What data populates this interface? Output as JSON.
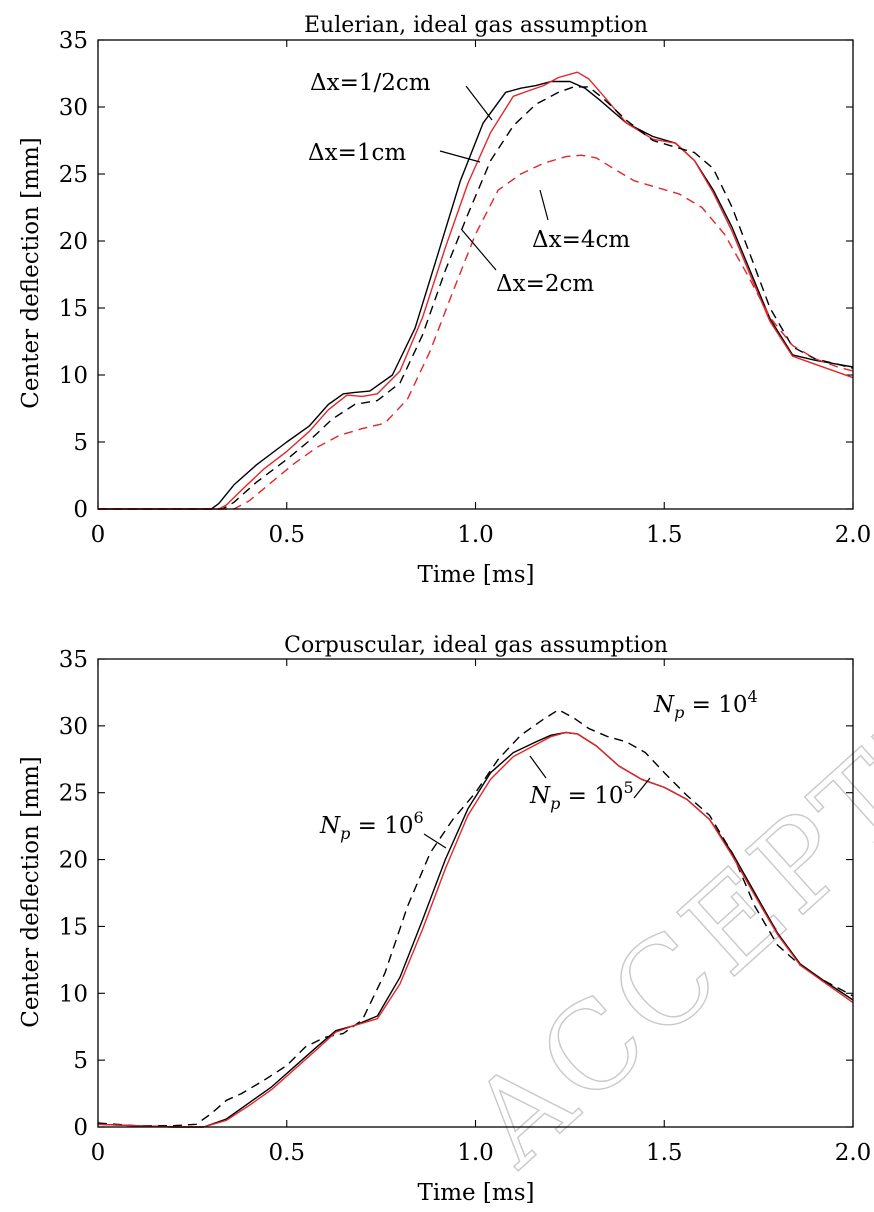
{
  "watermark": "ACCEPTED MANUSCRIPT",
  "colors": {
    "black": "#000000",
    "red": "#e3262b",
    "axis": "#000000"
  },
  "chart_data": [
    {
      "type": "line",
      "title": "Eulerian, ideal gas assumption",
      "xlabel": "Time [ms]",
      "ylabel": "Center deflection [mm]",
      "xlim": [
        0,
        2.0
      ],
      "ylim": [
        0,
        35
      ],
      "xticks": [
        0,
        0.5,
        1.0,
        1.5,
        2.0
      ],
      "xtick_labels": [
        "0",
        "0.5",
        "1.0",
        "1.5",
        "2.0"
      ],
      "yticks": [
        0,
        5,
        10,
        15,
        20,
        25,
        30,
        35
      ],
      "ytick_labels": [
        "0",
        "5",
        "10",
        "15",
        "20",
        "25",
        "30",
        "35"
      ],
      "grid": false,
      "series": [
        {
          "name": "Δx=1/2cm",
          "color": "#000000",
          "dash": "solid",
          "x": [
            0,
            0.3,
            0.32,
            0.36,
            0.42,
            0.5,
            0.56,
            0.61,
            0.65,
            0.68,
            0.72,
            0.78,
            0.84,
            0.9,
            0.96,
            1.02,
            1.08,
            1.12,
            1.16,
            1.2,
            1.25,
            1.29,
            1.33,
            1.4,
            1.47,
            1.53,
            1.58,
            1.63,
            1.68,
            1.73,
            1.78,
            1.84,
            1.9,
            1.96,
            2.0
          ],
          "y": [
            0,
            0,
            0.4,
            1.8,
            3.3,
            5.0,
            6.2,
            7.8,
            8.6,
            8.7,
            8.8,
            10.0,
            13.5,
            19.0,
            24.5,
            28.8,
            31.1,
            31.4,
            31.6,
            31.9,
            31.9,
            31.4,
            30.5,
            28.8,
            27.8,
            27.3,
            26.0,
            23.8,
            21.0,
            17.6,
            14.2,
            11.5,
            11.1,
            10.8,
            10.6
          ]
        },
        {
          "name": "Δx=1cm",
          "color": "#e3262b",
          "dash": "solid",
          "x": [
            0,
            0.32,
            0.34,
            0.38,
            0.44,
            0.5,
            0.56,
            0.61,
            0.66,
            0.7,
            0.74,
            0.8,
            0.86,
            0.92,
            0.98,
            1.04,
            1.1,
            1.14,
            1.18,
            1.22,
            1.27,
            1.3,
            1.34,
            1.4,
            1.47,
            1.53,
            1.58,
            1.63,
            1.68,
            1.73,
            1.78,
            1.84,
            1.9,
            1.96,
            2.0
          ],
          "y": [
            0,
            0,
            0.3,
            1.4,
            3.0,
            4.3,
            5.8,
            7.4,
            8.5,
            8.4,
            8.6,
            10.3,
            14.3,
            19.5,
            24.3,
            28.1,
            30.8,
            31.2,
            31.6,
            32.2,
            32.6,
            32.1,
            30.8,
            28.8,
            27.6,
            27.3,
            26.0,
            23.6,
            20.7,
            17.3,
            14.0,
            11.4,
            10.8,
            10.2,
            9.8
          ]
        },
        {
          "name": "Δx=2cm",
          "color": "#000000",
          "dash": "dashed",
          "x": [
            0,
            0.33,
            0.36,
            0.42,
            0.5,
            0.56,
            0.62,
            0.68,
            0.74,
            0.8,
            0.86,
            0.92,
            0.98,
            1.04,
            1.1,
            1.16,
            1.22,
            1.26,
            1.3,
            1.34,
            1.4,
            1.47,
            1.53,
            1.58,
            1.63,
            1.68,
            1.73,
            1.78,
            1.84,
            1.9,
            1.96,
            2.0
          ],
          "y": [
            0,
            0,
            0.5,
            2.0,
            3.7,
            5.1,
            6.7,
            7.8,
            8.1,
            9.4,
            13.0,
            17.8,
            22.0,
            26.0,
            28.6,
            30.2,
            31.1,
            31.5,
            31.5,
            30.6,
            29.0,
            27.5,
            27.0,
            26.6,
            25.4,
            22.5,
            18.8,
            15.0,
            12.1,
            11.2,
            10.8,
            10.5
          ]
        },
        {
          "name": "Δx=4cm",
          "color": "#e3262b",
          "dash": "dashed",
          "x": [
            0,
            0.36,
            0.4,
            0.46,
            0.52,
            0.58,
            0.64,
            0.7,
            0.76,
            0.82,
            0.88,
            0.94,
            1.0,
            1.06,
            1.12,
            1.18,
            1.24,
            1.28,
            1.32,
            1.36,
            1.42,
            1.48,
            1.54,
            1.6,
            1.66,
            1.72,
            1.78,
            1.84,
            1.9,
            1.96,
            2.0
          ],
          "y": [
            0,
            0,
            0.6,
            2.0,
            3.4,
            4.6,
            5.5,
            6.0,
            6.4,
            8.2,
            11.8,
            16.2,
            20.5,
            23.8,
            25.0,
            25.8,
            26.3,
            26.4,
            26.2,
            25.5,
            24.5,
            24.0,
            23.5,
            22.5,
            20.5,
            17.5,
            14.3,
            12.2,
            11.2,
            10.6,
            10.3
          ]
        }
      ],
      "annotations": [
        {
          "text": "Δx=1/2cm",
          "series": "Δx=1/2cm"
        },
        {
          "text": "Δx=1cm",
          "series": "Δx=1cm"
        },
        {
          "text": "Δx=2cm",
          "series": "Δx=2cm"
        },
        {
          "text": "Δx=4cm",
          "series": "Δx=4cm"
        }
      ]
    },
    {
      "type": "line",
      "title": "Corpuscular, ideal gas assumption",
      "xlabel": "Time [ms]",
      "ylabel": "Center deflection [mm]",
      "xlim": [
        0,
        2.0
      ],
      "ylim": [
        0,
        35
      ],
      "xticks": [
        0,
        0.5,
        1.0,
        1.5,
        2.0
      ],
      "xtick_labels": [
        "0",
        "0.5",
        "1.0",
        "1.5",
        "2.0"
      ],
      "yticks": [
        0,
        5,
        10,
        15,
        20,
        25,
        30,
        35
      ],
      "ytick_labels": [
        "0",
        "5",
        "10",
        "15",
        "20",
        "25",
        "30",
        "35"
      ],
      "grid": false,
      "series": [
        {
          "name": "Np = 10^4",
          "color": "#000000",
          "dash": "dashed",
          "x": [
            0,
            0.1,
            0.2,
            0.26,
            0.3,
            0.34,
            0.38,
            0.44,
            0.5,
            0.55,
            0.6,
            0.65,
            0.7,
            0.76,
            0.82,
            0.88,
            0.94,
            1.0,
            1.06,
            1.12,
            1.18,
            1.22,
            1.26,
            1.3,
            1.35,
            1.4,
            1.45,
            1.5,
            1.56,
            1.62,
            1.68,
            1.74,
            1.8,
            1.86,
            1.92,
            2.0
          ],
          "y": [
            0.3,
            0.1,
            0.1,
            0.2,
            1.0,
            2.0,
            2.5,
            3.5,
            4.6,
            6.0,
            6.7,
            7.0,
            8.0,
            11.5,
            16.5,
            20.5,
            23.0,
            25.0,
            27.5,
            29.3,
            30.5,
            31.2,
            30.6,
            29.8,
            29.2,
            28.8,
            28.0,
            26.5,
            24.8,
            23.3,
            20.5,
            16.5,
            13.6,
            12.1,
            11.0,
            9.8
          ]
        },
        {
          "name": "Np = 10^5",
          "color": "#000000",
          "dash": "solid",
          "x": [
            0,
            0.1,
            0.2,
            0.28,
            0.34,
            0.4,
            0.46,
            0.52,
            0.58,
            0.63,
            0.68,
            0.74,
            0.8,
            0.86,
            0.92,
            0.98,
            1.04,
            1.1,
            1.16,
            1.2,
            1.24,
            1.27,
            1.32,
            1.38,
            1.44,
            1.5,
            1.56,
            1.62,
            1.68,
            1.74,
            1.8,
            1.86,
            1.92,
            2.0
          ],
          "y": [
            0.2,
            0.1,
            0.0,
            0.0,
            0.6,
            1.8,
            3.0,
            4.5,
            6.0,
            7.2,
            7.6,
            8.3,
            11.2,
            15.5,
            20.0,
            23.8,
            26.5,
            28.0,
            28.8,
            29.3,
            29.5,
            29.4,
            28.5,
            27.0,
            26.0,
            25.4,
            24.5,
            23.0,
            20.5,
            17.5,
            14.5,
            12.2,
            11.0,
            9.5
          ]
        },
        {
          "name": "Np = 10^6",
          "color": "#e3262b",
          "dash": "solid",
          "x": [
            0,
            0.1,
            0.2,
            0.28,
            0.34,
            0.4,
            0.46,
            0.52,
            0.58,
            0.63,
            0.68,
            0.74,
            0.8,
            0.86,
            0.92,
            0.98,
            1.04,
            1.1,
            1.16,
            1.2,
            1.24,
            1.27,
            1.32,
            1.38,
            1.44,
            1.5,
            1.56,
            1.62,
            1.68,
            1.74,
            1.8,
            1.86,
            1.92,
            2.0
          ],
          "y": [
            0.2,
            0.1,
            0.0,
            0.0,
            0.5,
            1.6,
            2.8,
            4.3,
            5.8,
            7.1,
            7.6,
            8.1,
            10.7,
            14.8,
            19.3,
            23.3,
            26.0,
            27.7,
            28.6,
            29.2,
            29.5,
            29.4,
            28.5,
            27.0,
            26.0,
            25.4,
            24.5,
            23.0,
            20.3,
            17.3,
            14.4,
            12.1,
            10.9,
            9.3
          ]
        }
      ],
      "annotations": [
        {
          "text": "N_p = 10^4",
          "base": "N",
          "sub": "p",
          "rest": " = 10",
          "sup": "4",
          "series": "Np = 10^4"
        },
        {
          "text": "N_p = 10^5",
          "base": "N",
          "sub": "p",
          "rest": " = 10",
          "sup": "5",
          "series": "Np = 10^5"
        },
        {
          "text": "N_p = 10^6",
          "base": "N",
          "sub": "p",
          "rest": " = 10",
          "sup": "6",
          "series": "Np = 10^6"
        }
      ]
    }
  ]
}
